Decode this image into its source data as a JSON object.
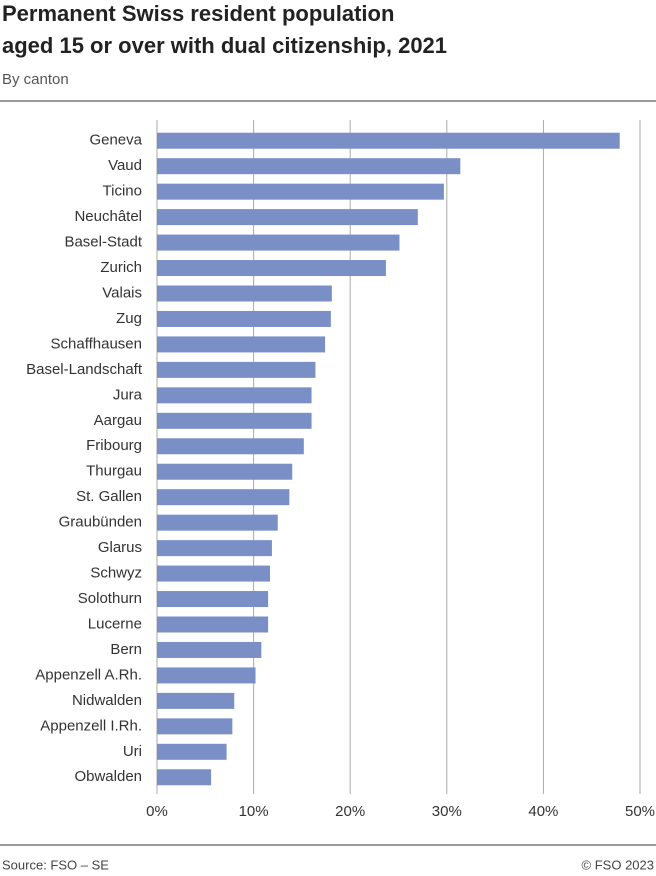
{
  "chart_data": {
    "type": "bar",
    "title": [
      "Permanent Swiss resident population",
      "aged 15 or over with dual citizenship, 2021"
    ],
    "subtitle": "By canton",
    "categories": [
      "Geneva",
      "Vaud",
      "Ticino",
      "Neuchâtel",
      "Basel-Stadt",
      "Zurich",
      "Valais",
      "Zug",
      "Schaffhausen",
      "Basel-Landschaft",
      "Jura",
      "Aargau",
      "Fribourg",
      "Thurgau",
      "St. Gallen",
      "Graubünden",
      "Glarus",
      "Schwyz",
      "Solothurn",
      "Lucerne",
      "Bern",
      "Appenzell A.Rh.",
      "Nidwalden",
      "Appenzell I.Rh.",
      "Uri",
      "Obwalden"
    ],
    "values": [
      47.9,
      31.4,
      29.7,
      27.0,
      25.1,
      23.7,
      18.1,
      18.0,
      17.4,
      16.4,
      16.0,
      16.0,
      15.2,
      14.0,
      13.7,
      12.5,
      11.9,
      11.7,
      11.5,
      11.5,
      10.8,
      10.2,
      8.0,
      7.8,
      7.2,
      5.6
    ],
    "color": "#7b8fc7",
    "xlim": [
      0,
      50
    ],
    "xticks": [
      {
        "value": 0,
        "label": "0%"
      },
      {
        "value": 10,
        "label": "10%"
      },
      {
        "value": 20,
        "label": "20%"
      },
      {
        "value": 30,
        "label": "30%"
      },
      {
        "value": 40,
        "label": "40%"
      },
      {
        "value": 50,
        "label": "50%"
      }
    ],
    "grid": true,
    "source": "Source: FSO – SE",
    "copyright": "© FSO 2023"
  }
}
